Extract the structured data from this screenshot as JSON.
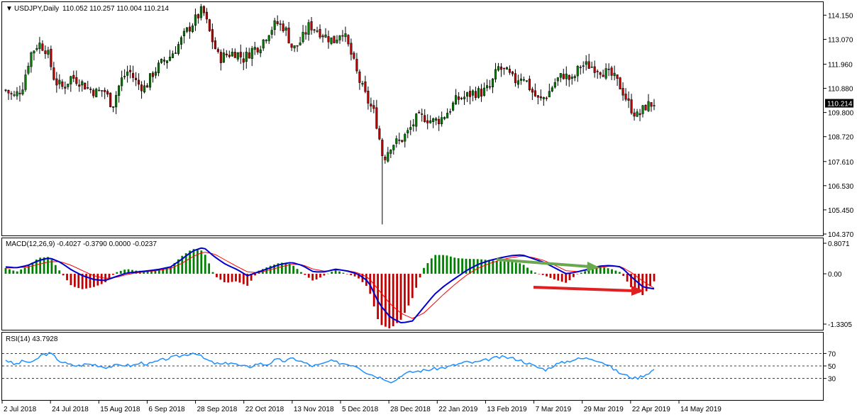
{
  "header": {
    "symbol": "USDJPY,Daily",
    "ohlc": "110.052 110.257 110.004 110.214"
  },
  "indicators": {
    "macd_label": "MACD(12,26,9) -0.4027 -0.3790 0.0000 -0.0237",
    "rsi_label": "RSI(14) 43.7928"
  },
  "colors": {
    "bull": "#008000",
    "bear": "#c00000",
    "macd_line": "#0000cc",
    "signal_line": "#ff0000",
    "rsi_line": "#1e90ff",
    "arrow_green": "#6aa84f",
    "arrow_red": "#e02020"
  },
  "chart_data": [
    {
      "type": "candlestick",
      "symbol": "USDJPY",
      "timeframe": "Daily",
      "ylim": [
        104.37,
        114.7
      ],
      "yticks": [
        "114.150",
        "113.070",
        "111.960",
        "110.880",
        "109.800",
        "108.720",
        "107.610",
        "106.530",
        "105.450",
        "104.370"
      ],
      "current_price": "110.214",
      "xticks": [
        "2 Jul 2018",
        "24 Jul 2018",
        "15 Aug 2018",
        "6 Sep 2018",
        "28 Sep 2018",
        "22 Oct 2018",
        "13 Nov 2018",
        "5 Dec 2018",
        "28 Dec 2018",
        "22 Jan 2019",
        "13 Feb 2019",
        "7 Mar 2019",
        "29 Mar 2019",
        "22 Apr 2019",
        "14 May 2019"
      ],
      "close_path": [
        {
          "date": "2 Jul 2018",
          "close": 110.8
        },
        {
          "date": "5 Jul 2018",
          "close": 110.5
        },
        {
          "date": "9 Jul 2018",
          "close": 110.9
        },
        {
          "date": "12 Jul 2018",
          "close": 112.4
        },
        {
          "date": "17 Jul 2018",
          "close": 112.9
        },
        {
          "date": "19 Jul 2018",
          "close": 112.6
        },
        {
          "date": "23 Jul 2018",
          "close": 111.2
        },
        {
          "date": "26 Jul 2018",
          "close": 110.9
        },
        {
          "date": "31 Jul 2018",
          "close": 111.4
        },
        {
          "date": "3 Aug 2018",
          "close": 111.2
        },
        {
          "date": "8 Aug 2018",
          "close": 110.9
        },
        {
          "date": "13 Aug 2018",
          "close": 110.7
        },
        {
          "date": "16 Aug 2018",
          "close": 110.8
        },
        {
          "date": "21 Aug 2018",
          "close": 110.1
        },
        {
          "date": "24 Aug 2018",
          "close": 111.2
        },
        {
          "date": "29 Aug 2018",
          "close": 111.7
        },
        {
          "date": "3 Sep 2018",
          "close": 111.1
        },
        {
          "date": "6 Sep 2018",
          "close": 110.9
        },
        {
          "date": "11 Sep 2018",
          "close": 111.6
        },
        {
          "date": "14 Sep 2018",
          "close": 112.0
        },
        {
          "date": "19 Sep 2018",
          "close": 112.3
        },
        {
          "date": "24 Sep 2018",
          "close": 112.8
        },
        {
          "date": "27 Sep 2018",
          "close": 113.4
        },
        {
          "date": "2 Oct 2018",
          "close": 113.9
        },
        {
          "date": "4 Oct 2018",
          "close": 114.4
        },
        {
          "date": "8 Oct 2018",
          "close": 113.2
        },
        {
          "date": "11 Oct 2018",
          "close": 112.2
        },
        {
          "date": "16 Oct 2018",
          "close": 112.4
        },
        {
          "date": "19 Oct 2018",
          "close": 112.5
        },
        {
          "date": "24 Oct 2018",
          "close": 112.2
        },
        {
          "date": "29 Oct 2018",
          "close": 112.6
        },
        {
          "date": "1 Nov 2018",
          "close": 112.8
        },
        {
          "date": "6 Nov 2018",
          "close": 113.4
        },
        {
          "date": "9 Nov 2018",
          "close": 113.8
        },
        {
          "date": "14 Nov 2018",
          "close": 113.6
        },
        {
          "date": "19 Nov 2018",
          "close": 112.6
        },
        {
          "date": "22 Nov 2018",
          "close": 113.0
        },
        {
          "date": "27 Nov 2018",
          "close": 113.7
        },
        {
          "date": "30 Nov 2018",
          "close": 113.5
        },
        {
          "date": "5 Dec 2018",
          "close": 113.2
        },
        {
          "date": "10 Dec 2018",
          "close": 113.0
        },
        {
          "date": "13 Dec 2018",
          "close": 113.5
        },
        {
          "date": "18 Dec 2018",
          "close": 112.5
        },
        {
          "date": "21 Dec 2018",
          "close": 111.3
        },
        {
          "date": "26 Dec 2018",
          "close": 110.4
        },
        {
          "date": "31 Dec 2018",
          "close": 109.7
        },
        {
          "date": "3 Jan 2019",
          "close": 107.7
        },
        {
          "date": "8 Jan 2019",
          "close": 108.4
        },
        {
          "date": "11 Jan 2019",
          "close": 108.5
        },
        {
          "date": "16 Jan 2019",
          "close": 108.9
        },
        {
          "date": "21 Jan 2019",
          "close": 109.5
        },
        {
          "date": "24 Jan 2019",
          "close": 109.6
        },
        {
          "date": "29 Jan 2019",
          "close": 109.4
        },
        {
          "date": "1 Feb 2019",
          "close": 109.5
        },
        {
          "date": "6 Feb 2019",
          "close": 109.9
        },
        {
          "date": "11 Feb 2019",
          "close": 110.4
        },
        {
          "date": "14 Feb 2019",
          "close": 110.5
        },
        {
          "date": "19 Feb 2019",
          "close": 110.7
        },
        {
          "date": "22 Feb 2019",
          "close": 110.7
        },
        {
          "date": "27 Feb 2019",
          "close": 110.9
        },
        {
          "date": "4 Mar 2019",
          "close": 111.8
        },
        {
          "date": "7 Mar 2019",
          "close": 111.6
        },
        {
          "date": "12 Mar 2019",
          "close": 111.2
        },
        {
          "date": "15 Mar 2019",
          "close": 111.5
        },
        {
          "date": "20 Mar 2019",
          "close": 110.8
        },
        {
          "date": "25 Mar 2019",
          "close": 110.3
        },
        {
          "date": "28 Mar 2019",
          "close": 110.6
        },
        {
          "date": "2 Apr 2019",
          "close": 111.2
        },
        {
          "date": "5 Apr 2019",
          "close": 111.5
        },
        {
          "date": "10 Apr 2019",
          "close": 111.2
        },
        {
          "date": "15 Apr 2019",
          "close": 111.9
        },
        {
          "date": "18 Apr 2019",
          "close": 111.9
        },
        {
          "date": "23 Apr 2019",
          "close": 111.8
        },
        {
          "date": "26 Apr 2019",
          "close": 111.6
        },
        {
          "date": "1 May 2019",
          "close": 111.4
        },
        {
          "date": "6 May 2019",
          "close": 110.9
        },
        {
          "date": "9 May 2019",
          "close": 110.1
        },
        {
          "date": "14 May 2019",
          "close": 109.6
        },
        {
          "date": "17 May 2019",
          "close": 110.1
        },
        {
          "date": "21 May 2019",
          "close": 110.214
        }
      ],
      "extreme_low": {
        "date": "3 Jan 2019",
        "low": 104.8
      }
    },
    {
      "type": "histogram+line",
      "name": "MACD(12,26,9)",
      "ylim": [
        -1.3305,
        0.8071
      ],
      "yticks": [
        "0.8071",
        "0.00",
        "-1.3305"
      ],
      "macd": [
        0.18,
        0.16,
        0.22,
        0.35,
        0.42,
        0.3,
        0.1,
        -0.05,
        -0.15,
        -0.18,
        -0.08,
        0.02,
        0.05,
        0.08,
        0.12,
        0.18,
        0.38,
        0.6,
        0.7,
        0.45,
        0.25,
        0.12,
        -0.05,
        0.05,
        0.15,
        0.25,
        0.3,
        0.22,
        0.05,
        0.05,
        0.12,
        0.08,
        0.0,
        -0.2,
        -0.8,
        -1.15,
        -1.3,
        -1.25,
        -0.9,
        -0.55,
        -0.3,
        -0.1,
        0.1,
        0.25,
        0.35,
        0.42,
        0.48,
        0.5,
        0.4,
        0.3,
        0.15,
        0.0,
        0.05,
        0.12,
        0.2,
        0.22,
        0.18,
        -0.1,
        -0.35,
        -0.4
      ],
      "signal": [
        0.15,
        0.16,
        0.18,
        0.25,
        0.32,
        0.32,
        0.22,
        0.08,
        -0.05,
        -0.12,
        -0.1,
        -0.02,
        0.03,
        0.06,
        0.09,
        0.14,
        0.27,
        0.45,
        0.58,
        0.52,
        0.36,
        0.2,
        0.05,
        0.03,
        0.1,
        0.18,
        0.25,
        0.24,
        0.12,
        0.07,
        0.1,
        0.09,
        0.03,
        -0.1,
        -0.45,
        -0.8,
        -1.05,
        -1.18,
        -1.05,
        -0.78,
        -0.5,
        -0.25,
        -0.02,
        0.15,
        0.27,
        0.36,
        0.43,
        0.47,
        0.43,
        0.35,
        0.22,
        0.08,
        0.06,
        0.1,
        0.16,
        0.2,
        0.19,
        0.02,
        -0.2,
        -0.38
      ],
      "annotations": [
        "green arrow along declining MACD peaks (Mar–Apr 2019)",
        "red arrow along MACD lows (Mar–May 2019)"
      ]
    },
    {
      "type": "line",
      "name": "RSI(14)",
      "ylim": [
        0,
        100
      ],
      "yticks": [
        "70",
        "50",
        "30"
      ],
      "levels": [
        70,
        50,
        30
      ],
      "values": [
        60,
        52,
        58,
        55,
        68,
        70,
        58,
        52,
        50,
        53,
        52,
        48,
        50,
        52,
        50,
        55,
        53,
        58,
        62,
        65,
        68,
        72,
        62,
        55,
        52,
        56,
        50,
        48,
        54,
        52,
        60,
        58,
        62,
        56,
        50,
        52,
        58,
        55,
        53,
        50,
        40,
        34,
        30,
        24,
        36,
        40,
        42,
        44,
        46,
        48,
        52,
        56,
        55,
        58,
        62,
        64,
        63,
        60,
        54,
        48,
        44,
        52,
        56,
        60,
        62,
        62,
        58,
        50,
        40,
        34,
        30,
        36,
        44
      ]
    }
  ]
}
